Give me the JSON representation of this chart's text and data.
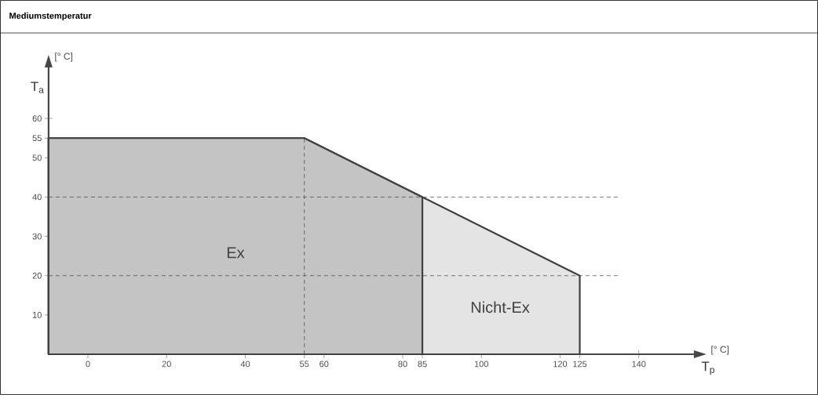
{
  "chart_data": {
    "type": "area",
    "title": "Mediumstemperatur",
    "xlabel": "T$_{p}$",
    "ylabel": "T$_{a}$",
    "annotations": [
      "[° C]",
      "[° C]"
    ],
    "xlim": [
      -10,
      154
    ],
    "ylim": [
      0,
      73
    ],
    "xticks": [
      0,
      20,
      40,
      55,
      60,
      80,
      85,
      100,
      120,
      125,
      140
    ],
    "yticks": [
      10,
      20,
      30,
      40,
      50,
      55,
      60
    ],
    "series": [
      {
        "name": "Nicht-Ex",
        "color": "#e4e4e4",
        "x": [
          -10,
          55,
          85,
          125
        ],
        "values": [
          55,
          55,
          40,
          20
        ]
      },
      {
        "name": "Ex",
        "color": "#c4c4c4",
        "x": [
          -10,
          55,
          85
        ],
        "values": [
          55,
          55,
          40
        ]
      }
    ],
    "ref_lines": [
      {
        "axis": "x",
        "value": 55,
        "line_style": "dashed"
      },
      {
        "axis": "y",
        "value": 40,
        "line_style": "dashed"
      },
      {
        "axis": "y",
        "value": 20,
        "line_style": "dashed"
      }
    ]
  }
}
